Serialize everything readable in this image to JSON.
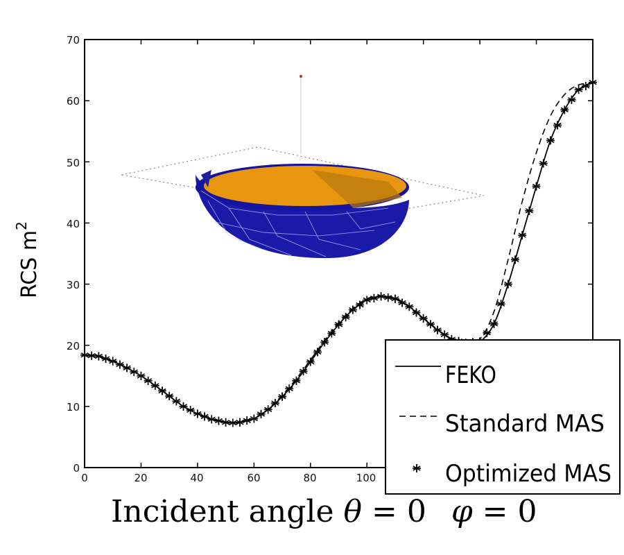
{
  "chart_data": {
    "type": "line",
    "title": "",
    "xlabel": "Incident angle θ = 0   φ = 0",
    "xlabel_parts": {
      "main": "Incident angle ",
      "theta": "θ",
      "eq1": " = 0",
      "phi": "φ",
      "eq2": " = 0"
    },
    "ylabel": "RCS m",
    "ylabel_superscript": "2",
    "xlim": [
      0,
      180
    ],
    "ylim": [
      0,
      70
    ],
    "xticks": [
      0,
      20,
      40,
      60,
      80,
      100
    ],
    "xtick_labels": [
      "0",
      "20",
      "40",
      "60",
      "80",
      "100"
    ],
    "yticks": [
      0,
      10,
      20,
      30,
      40,
      50,
      60,
      70
    ],
    "ytick_labels": [
      "0",
      "10",
      "20",
      "30",
      "40",
      "50",
      "60",
      "70"
    ],
    "grid": false,
    "legend_position": "bottom-right",
    "x": [
      0,
      5,
      10,
      15,
      20,
      25,
      30,
      35,
      40,
      45,
      50,
      53,
      55,
      60,
      65,
      70,
      75,
      80,
      85,
      90,
      95,
      100,
      105,
      110,
      115,
      120,
      125,
      130,
      135,
      140,
      145,
      150,
      155,
      160,
      165,
      170,
      175,
      180
    ],
    "series": [
      {
        "name": "FEKO",
        "style": "solid",
        "values": [
          18.4,
          18.2,
          17.4,
          16.3,
          15.0,
          13.4,
          11.7,
          10.0,
          8.8,
          7.9,
          7.4,
          7.3,
          7.4,
          8.0,
          9.5,
          11.6,
          14.2,
          17.3,
          20.5,
          23.4,
          25.8,
          27.4,
          28.0,
          27.6,
          26.3,
          24.4,
          22.5,
          21.0,
          20.4,
          20.6,
          23.5,
          30.0,
          38.0,
          46.0,
          53.5,
          58.5,
          61.8,
          63.0
        ]
      },
      {
        "name": "Standard MAS",
        "style": "dashed",
        "values": [
          18.4,
          18.2,
          17.4,
          16.3,
          15.0,
          13.4,
          11.7,
          10.0,
          8.8,
          7.9,
          7.4,
          7.3,
          7.4,
          8.0,
          9.5,
          11.8,
          14.5,
          17.6,
          20.8,
          23.7,
          26.0,
          27.6,
          28.1,
          27.7,
          26.4,
          24.5,
          22.6,
          21.1,
          20.5,
          21.0,
          25.5,
          34.0,
          43.5,
          51.5,
          57.5,
          61.0,
          62.6,
          62.8
        ]
      },
      {
        "name": "Optimized MAS",
        "style": "markers",
        "values": [
          18.4,
          18.2,
          17.4,
          16.3,
          15.0,
          13.4,
          11.7,
          10.0,
          8.8,
          7.9,
          7.4,
          7.3,
          7.4,
          8.0,
          9.5,
          11.6,
          14.2,
          17.3,
          20.5,
          23.4,
          25.8,
          27.4,
          28.0,
          27.6,
          26.3,
          24.4,
          22.5,
          21.0,
          20.4,
          20.6,
          23.5,
          30.0,
          38.0,
          46.0,
          53.5,
          58.5,
          61.8,
          63.0
        ]
      }
    ],
    "legend": [
      "FEKO",
      "Standard MAS",
      "Optimized MAS"
    ],
    "inset": "3D hemispherical bowl mesh",
    "colors": {
      "axis": "#000000",
      "line": "#000000",
      "bowl_outer": "#1a1aa8",
      "bowl_inner": "#e8960f",
      "dotted": "#666666",
      "point": "#b03030"
    }
  }
}
